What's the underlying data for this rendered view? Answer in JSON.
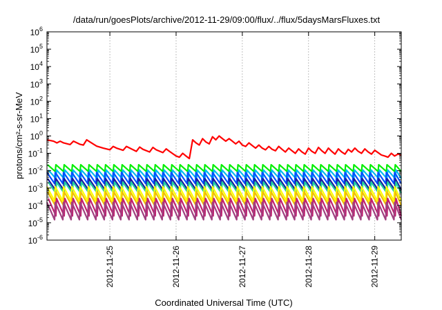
{
  "chart_data": {
    "type": "line",
    "title": "/data/run/goesPlots/archive/2012-11-29/09:00/flux/../flux/5daysMarsFluxes.txt",
    "xlabel": "Coordinated Universal Time (UTC)",
    "ylabel": "protons/cm²-s-sr-MeV",
    "yscale": "log",
    "ylim_exponents": [
      -6,
      6
    ],
    "y_ticks": [
      {
        "base": "10",
        "exp": "-6"
      },
      {
        "base": "10",
        "exp": "-5"
      },
      {
        "base": "10",
        "exp": "-4"
      },
      {
        "base": "10",
        "exp": "-3"
      },
      {
        "base": "10",
        "exp": "-2"
      },
      {
        "base": "10",
        "exp": "-1"
      },
      {
        "base": "10",
        "exp": "0"
      },
      {
        "base": "10",
        "exp": "1"
      },
      {
        "base": "10",
        "exp": "2"
      },
      {
        "base": "10",
        "exp": "3"
      },
      {
        "base": "10",
        "exp": "4"
      },
      {
        "base": "10",
        "exp": "5"
      },
      {
        "base": "10",
        "exp": "6"
      }
    ],
    "xlim_days": [
      24.05,
      29.4
    ],
    "x_ticks": [
      {
        "label": "2012-11-25",
        "day": 25
      },
      {
        "label": "2012-11-26",
        "day": 26
      },
      {
        "label": "2012-11-27",
        "day": 27
      },
      {
        "label": "2012-11-28",
        "day": 28
      },
      {
        "label": "2012-11-29",
        "day": 29
      }
    ],
    "grid": true,
    "series": [
      {
        "color": "#ff0000",
        "points": [
          [
            24.05,
            0.6
          ],
          [
            24.15,
            0.5
          ],
          [
            24.2,
            0.4
          ],
          [
            24.25,
            0.5
          ],
          [
            24.3,
            0.4
          ],
          [
            24.4,
            0.32
          ],
          [
            24.45,
            0.5
          ],
          [
            24.55,
            0.33
          ],
          [
            24.6,
            0.3
          ],
          [
            24.65,
            0.6
          ],
          [
            24.7,
            0.45
          ],
          [
            24.8,
            0.26
          ],
          [
            24.9,
            0.2
          ],
          [
            25.0,
            0.16
          ],
          [
            25.05,
            0.25
          ],
          [
            25.1,
            0.2
          ],
          [
            25.2,
            0.15
          ],
          [
            25.25,
            0.25
          ],
          [
            25.3,
            0.2
          ],
          [
            25.4,
            0.13
          ],
          [
            25.45,
            0.23
          ],
          [
            25.5,
            0.17
          ],
          [
            25.6,
            0.12
          ],
          [
            25.65,
            0.22
          ],
          [
            25.7,
            0.16
          ],
          [
            25.8,
            0.11
          ],
          [
            25.85,
            0.18
          ],
          [
            25.9,
            0.13
          ],
          [
            26.0,
            0.07
          ],
          [
            26.05,
            0.06
          ],
          [
            26.1,
            0.1
          ],
          [
            26.15,
            0.07
          ],
          [
            26.2,
            0.05
          ],
          [
            26.25,
            0.6
          ],
          [
            26.3,
            0.4
          ],
          [
            26.35,
            0.3
          ],
          [
            26.4,
            0.7
          ],
          [
            26.45,
            0.45
          ],
          [
            26.5,
            0.35
          ],
          [
            26.55,
            0.9
          ],
          [
            26.6,
            0.6
          ],
          [
            26.65,
            1.0
          ],
          [
            26.7,
            0.7
          ],
          [
            26.75,
            0.5
          ],
          [
            26.8,
            0.7
          ],
          [
            26.85,
            0.5
          ],
          [
            26.9,
            0.35
          ],
          [
            26.95,
            0.5
          ],
          [
            27.0,
            0.3
          ],
          [
            27.05,
            0.25
          ],
          [
            27.1,
            0.4
          ],
          [
            27.15,
            0.28
          ],
          [
            27.2,
            0.2
          ],
          [
            27.25,
            0.3
          ],
          [
            27.3,
            0.2
          ],
          [
            27.35,
            0.16
          ],
          [
            27.4,
            0.25
          ],
          [
            27.45,
            0.17
          ],
          [
            27.5,
            0.14
          ],
          [
            27.55,
            0.25
          ],
          [
            27.6,
            0.17
          ],
          [
            27.65,
            0.12
          ],
          [
            27.7,
            0.2
          ],
          [
            27.75,
            0.14
          ],
          [
            27.8,
            0.1
          ],
          [
            27.85,
            0.18
          ],
          [
            27.9,
            0.12
          ],
          [
            27.95,
            0.09
          ],
          [
            28.0,
            0.2
          ],
          [
            28.05,
            0.13
          ],
          [
            28.1,
            0.1
          ],
          [
            28.15,
            0.22
          ],
          [
            28.2,
            0.14
          ],
          [
            28.25,
            0.1
          ],
          [
            28.3,
            0.2
          ],
          [
            28.35,
            0.13
          ],
          [
            28.4,
            0.09
          ],
          [
            28.45,
            0.18
          ],
          [
            28.5,
            0.12
          ],
          [
            28.55,
            0.09
          ],
          [
            28.6,
            0.17
          ],
          [
            28.65,
            0.12
          ],
          [
            28.7,
            0.2
          ],
          [
            28.75,
            0.13
          ],
          [
            28.8,
            0.1
          ],
          [
            28.85,
            0.18
          ],
          [
            28.9,
            0.12
          ],
          [
            28.95,
            0.09
          ],
          [
            29.0,
            0.15
          ],
          [
            29.05,
            0.11
          ],
          [
            29.1,
            0.08
          ],
          [
            29.15,
            0.07
          ],
          [
            29.2,
            0.06
          ],
          [
            29.25,
            0.1
          ],
          [
            29.3,
            0.07
          ],
          [
            29.35,
            0.09
          ],
          [
            29.4,
            0.08
          ]
        ]
      },
      {
        "color": "#00ee00",
        "peak": 0.022,
        "trough": 0.009,
        "period": 0.125
      },
      {
        "color": "#00bbee",
        "peak": 0.011,
        "trough": 0.0035,
        "period": 0.125
      },
      {
        "color": "#0050ff",
        "peak": 0.008,
        "trough": 0.0018,
        "period": 0.125
      },
      {
        "color": "#1a1aa0",
        "peak": 0.0035,
        "trough": 0.0008,
        "period": 0.125
      },
      {
        "color": "#20d0a0",
        "peak": 0.0022,
        "trough": 0.0005,
        "period": 0.125
      },
      {
        "color": "#ffff00",
        "peak": 0.0012,
        "trough": 0.00018,
        "period": 0.125
      },
      {
        "color": "#f0c000",
        "peak": 0.0006,
        "trough": 0.0001,
        "period": 0.125
      },
      {
        "color": "#c02070",
        "peak": 0.00025,
        "trough": 2.5e-05,
        "period": 0.125
      },
      {
        "color": "#a04080",
        "peak": 0.00015,
        "trough": 1.5e-05,
        "period": 0.125
      }
    ]
  }
}
